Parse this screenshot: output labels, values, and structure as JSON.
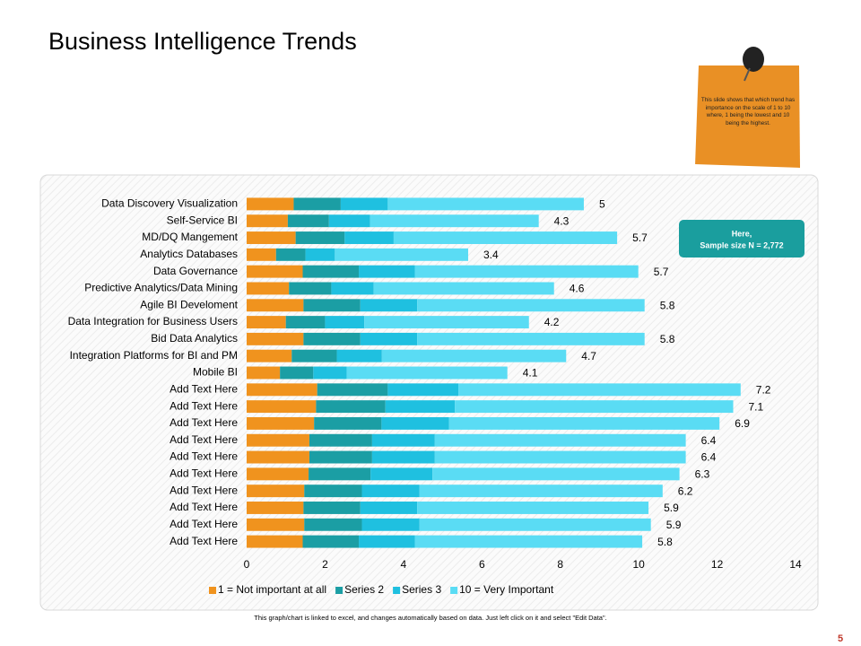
{
  "title": "Business Intelligence Trends",
  "note": "This slide shows that which trend has importance on the scale of 1 to 10 where, 1 being the lowest and 10 being the highest.",
  "badge": [
    "Here,",
    "Sample size N = 2,772"
  ],
  "footer": "This graph/chart is linked to excel, and changes automatically based on data. Just left click on it and select \"Edit Data\".",
  "page_number": "5",
  "chart_data": {
    "type": "bar",
    "orientation": "horizontal",
    "stacked": true,
    "legend": "bottom",
    "categories": [
      "Data Discovery Visualization",
      "Self-Service BI",
      "MD/DQ Mangement",
      "Analytics Databases",
      "Data Governance",
      "Predictive Analytics/Data Mining",
      "Agile BI Develoment",
      "Data Integration for Business Users",
      "Bid Data Analytics",
      "Integration Platforms for BI and PM",
      "Mobile BI",
      "Add Text Here",
      "Add Text Here",
      "Add Text Here",
      "Add Text Here",
      "Add Text Here",
      "Add Text Here",
      "Add Text Here",
      "Add Text Here",
      "Add Text Here",
      "Add Text Here"
    ],
    "series": [
      {
        "name": "1 = Not important at all",
        "color": "#f0931e",
        "values": [
          1.2,
          1.05,
          1.25,
          0.75,
          1.43,
          1.08,
          1.45,
          1.0,
          1.45,
          1.15,
          0.85,
          1.8,
          1.77,
          1.72,
          1.6,
          1.6,
          1.58,
          1.47,
          1.45,
          1.47,
          1.43
        ]
      },
      {
        "name": "Series 2",
        "color": "#1b9ea4",
        "values": [
          1.2,
          1.05,
          1.25,
          0.75,
          1.43,
          1.08,
          1.45,
          1.0,
          1.45,
          1.15,
          0.85,
          1.8,
          1.77,
          1.72,
          1.6,
          1.6,
          1.58,
          1.47,
          1.45,
          1.47,
          1.43
        ]
      },
      {
        "name": "Series 3",
        "color": "#1fc0e0",
        "values": [
          1.2,
          1.05,
          1.25,
          0.75,
          1.43,
          1.08,
          1.45,
          1.0,
          1.45,
          1.15,
          0.85,
          1.8,
          1.77,
          1.72,
          1.6,
          1.6,
          1.58,
          1.47,
          1.45,
          1.47,
          1.43
        ]
      },
      {
        "name": "10 = Very Important",
        "color": "#5adcf4",
        "values": [
          5,
          4.3,
          5.7,
          3.4,
          5.7,
          4.6,
          5.8,
          4.2,
          5.8,
          4.7,
          4.1,
          7.2,
          7.1,
          6.9,
          6.4,
          6.4,
          6.3,
          6.2,
          5.9,
          5.9,
          5.8
        ],
        "data_labels": true
      }
    ],
    "xlim": [
      0,
      14
    ],
    "xticks": [
      0,
      2,
      4,
      6,
      8,
      10,
      12,
      14
    ]
  }
}
